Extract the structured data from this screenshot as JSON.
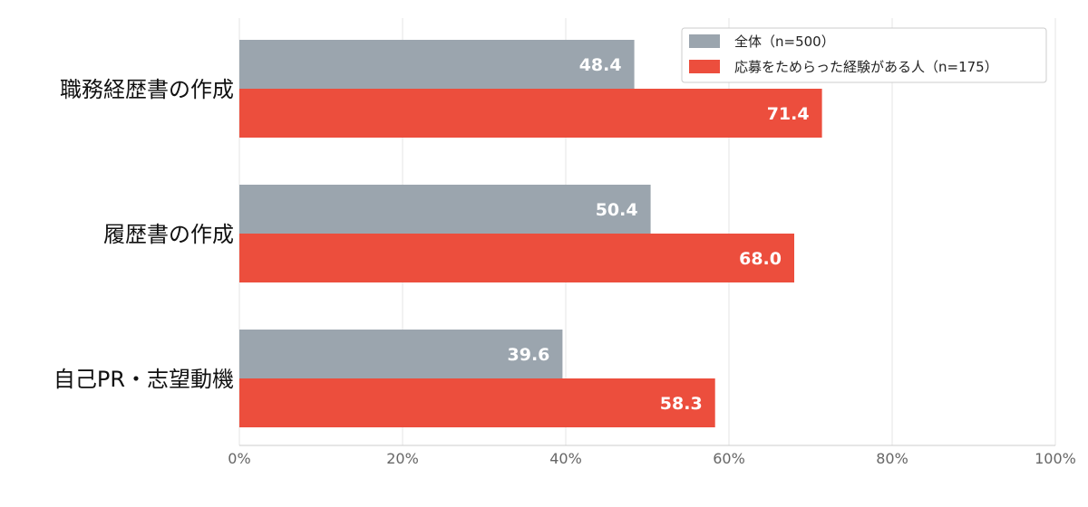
{
  "chart_data": {
    "type": "bar",
    "orientation": "horizontal",
    "categories": [
      "職務経歴書の作成",
      "履歴書の作成",
      "自己PR・志望動機"
    ],
    "series": [
      {
        "name": "全体（n=500）",
        "values": [
          48.4,
          50.4,
          39.6
        ],
        "color": "#9BA5AE"
      },
      {
        "name": "応募をためらった経験がある人（n=175）",
        "values": [
          71.4,
          68.0,
          58.3
        ],
        "color": "#EC4E3D"
      }
    ],
    "xlim": [
      0,
      100
    ],
    "xticks": [
      "0%",
      "20%",
      "40%",
      "60%",
      "80%",
      "100%"
    ],
    "value_labels": {
      "series_0": [
        "48.4",
        "50.4",
        "39.6"
      ],
      "series_1": [
        "71.4",
        "68.0",
        "58.3"
      ]
    },
    "title": "",
    "xlabel": "",
    "ylabel": "",
    "grid": true,
    "legend_position": "top-right"
  }
}
